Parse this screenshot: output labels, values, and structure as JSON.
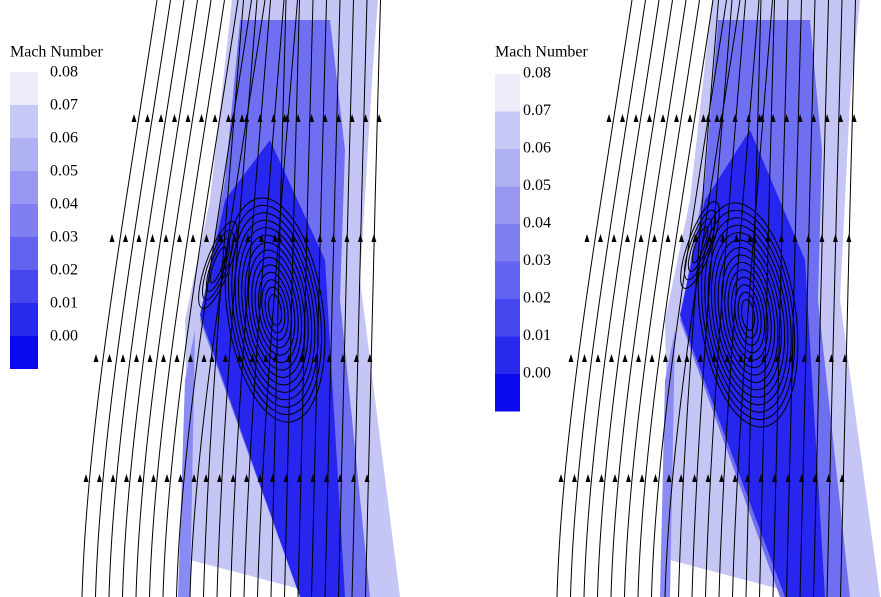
{
  "panels": [
    {
      "legend": {
        "title": "Mach Number",
        "labels": [
          "0.08",
          "0.07",
          "0.06",
          "0.05",
          "0.04",
          "0.03",
          "0.02",
          "0.01",
          "0.00"
        ]
      }
    },
    {
      "legend": {
        "title": "Mach Number",
        "labels": [
          "0.08",
          "0.07",
          "0.06",
          "0.05",
          "0.04",
          "0.03",
          "0.02",
          "0.01",
          "0.00"
        ]
      }
    }
  ]
}
